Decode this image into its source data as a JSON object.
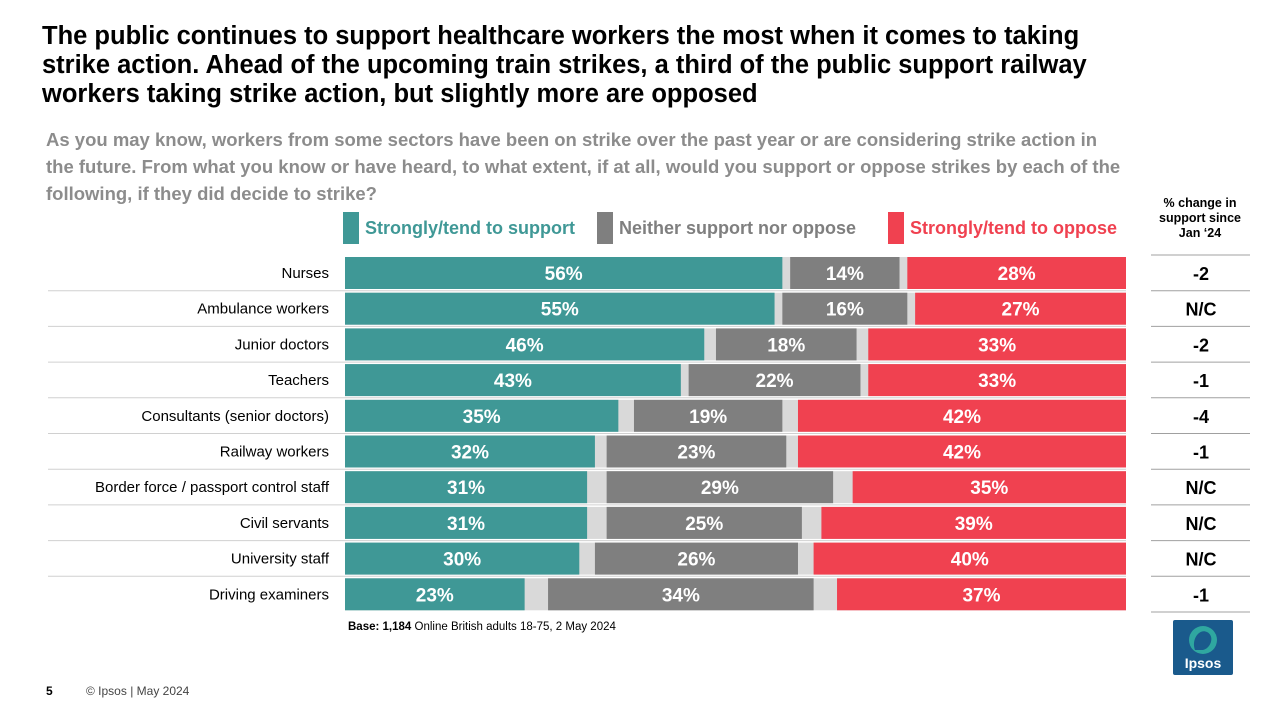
{
  "title": "The public continues to support healthcare workers the most when it comes to taking strike action. Ahead of the upcoming train strikes, a third of the public support railway workers taking strike action, but slightly more are opposed",
  "subtitle": "As you may know, workers from some sectors have been on strike over the past year or are considering strike action in the future.  From what you know or have heard, to what extent, if at all, would you support or oppose strikes by each of the following, if they did decide to strike?",
  "legend": {
    "support": "Strongly/tend to support",
    "neither": "Neither support nor oppose",
    "oppose": "Strongly/tend to oppose"
  },
  "change_header": "% change in support since Jan ‘24",
  "base_note": {
    "label": "Base:",
    "count": "1,184",
    "rest": "Online British adults 18-75, 2 May 2024"
  },
  "footer": {
    "page_number": "5",
    "copyright": "© Ipsos | May 2024"
  },
  "logo_text": "Ipsos",
  "colors": {
    "support": "#3f9896",
    "neither": "#7f7f7f",
    "oppose": "#f04150",
    "dont_know": "#d9d9d9"
  },
  "chart_data": {
    "type": "bar",
    "orientation": "horizontal-stacked",
    "categories": [
      "Nurses",
      "Ambulance workers",
      "Junior doctors",
      "Teachers",
      "Consultants (senior doctors)",
      "Railway workers",
      "Border force / passport control staff",
      "Civil servants",
      "University staff",
      "Driving examiners"
    ],
    "series": [
      {
        "name": "Strongly/tend to support",
        "values": [
          56,
          55,
          46,
          43,
          35,
          32,
          31,
          31,
          30,
          23
        ]
      },
      {
        "name": "Neither support nor oppose",
        "values": [
          14,
          16,
          18,
          22,
          19,
          23,
          29,
          25,
          26,
          34
        ]
      },
      {
        "name": "Strongly/tend to oppose",
        "values": [
          28,
          27,
          33,
          33,
          42,
          42,
          35,
          39,
          40,
          37
        ]
      }
    ],
    "change_since_jan_24": [
      "-2",
      "N/C",
      "-2",
      "-1",
      "-4",
      "-1",
      "N/C",
      "N/C",
      "N/C",
      "-1"
    ],
    "value_suffix": "%",
    "xlim": [
      0,
      100
    ]
  }
}
